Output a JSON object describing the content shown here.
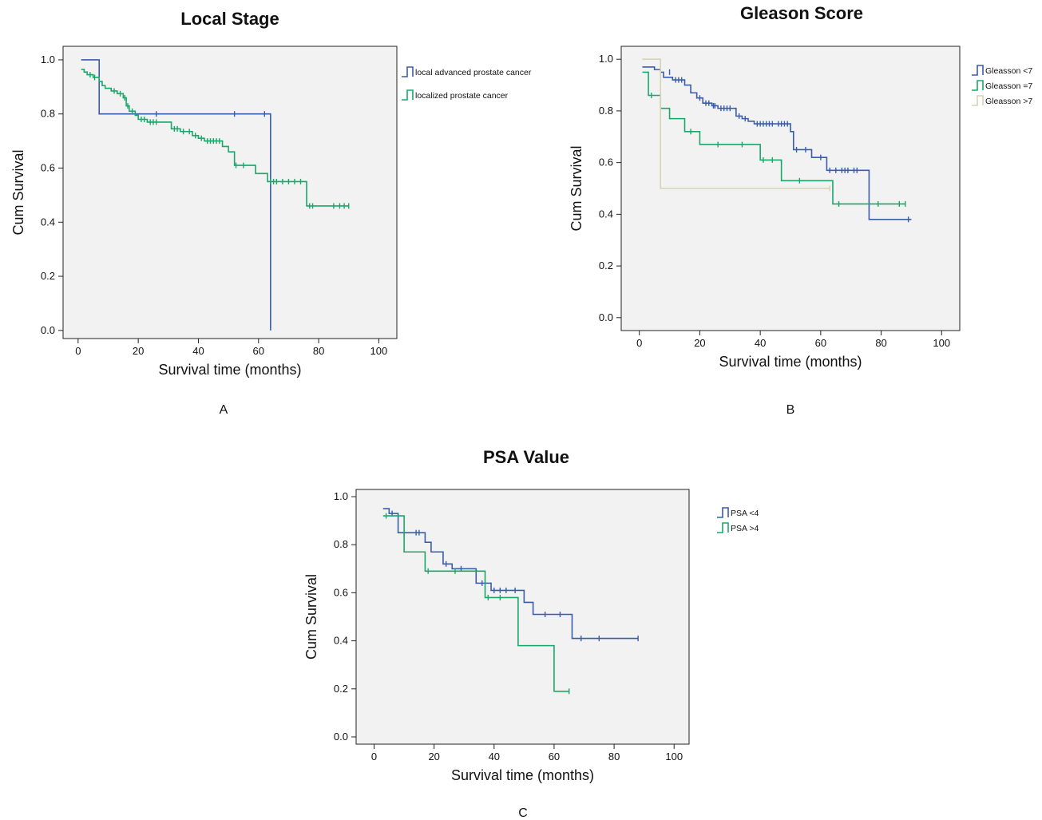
{
  "chart_data": [
    {
      "type": "line",
      "panel": "A",
      "title": "Local Stage",
      "xlabel": "Survival time (months)",
      "ylabel": "Cum Survival",
      "xlim": [
        -5,
        106
      ],
      "ylim": [
        -0.03,
        1.05
      ],
      "xticks": [
        0,
        20,
        40,
        60,
        80,
        100
      ],
      "yticks": [
        0.0,
        0.2,
        0.4,
        0.6,
        0.8,
        1.0
      ],
      "grid": false,
      "legend": "top-right",
      "series": [
        {
          "name": "local advanced prostate cancer",
          "color": "#3a5cad",
          "steps": [
            [
              1,
              1.0
            ],
            [
              7,
              0.8
            ],
            [
              64,
              0.0
            ]
          ],
          "end": 64,
          "censored": [
            [
              26,
              0.8
            ],
            [
              52,
              0.8
            ],
            [
              62,
              0.8
            ]
          ]
        },
        {
          "name": "localized prostate cancer",
          "color": "#1aa86a",
          "steps": [
            [
              1,
              0.965
            ],
            [
              2,
              0.955
            ],
            [
              3,
              0.945
            ],
            [
              5,
              0.935
            ],
            [
              7,
              0.92
            ],
            [
              8,
              0.905
            ],
            [
              9,
              0.895
            ],
            [
              11,
              0.885
            ],
            [
              13,
              0.875
            ],
            [
              15,
              0.86
            ],
            [
              16,
              0.83
            ],
            [
              17,
              0.81
            ],
            [
              19,
              0.795
            ],
            [
              20,
              0.78
            ],
            [
              23,
              0.77
            ],
            [
              31,
              0.745
            ],
            [
              34,
              0.735
            ],
            [
              38,
              0.72
            ],
            [
              40,
              0.71
            ],
            [
              42,
              0.7
            ],
            [
              48,
              0.68
            ],
            [
              50,
              0.66
            ],
            [
              52,
              0.61
            ],
            [
              59,
              0.58
            ],
            [
              63,
              0.55
            ],
            [
              76,
              0.46
            ]
          ],
          "end": 90,
          "censored": [
            [
              4,
              0.945
            ],
            [
              5.5,
              0.935
            ],
            [
              12,
              0.885
            ],
            [
              14,
              0.875
            ],
            [
              15.5,
              0.86
            ],
            [
              16.5,
              0.83
            ],
            [
              18,
              0.81
            ],
            [
              21,
              0.78
            ],
            [
              22,
              0.78
            ],
            [
              24,
              0.77
            ],
            [
              25,
              0.77
            ],
            [
              26,
              0.77
            ],
            [
              32,
              0.745
            ],
            [
              33,
              0.745
            ],
            [
              35,
              0.735
            ],
            [
              37,
              0.735
            ],
            [
              39,
              0.72
            ],
            [
              41,
              0.71
            ],
            [
              43,
              0.7
            ],
            [
              44,
              0.7
            ],
            [
              45,
              0.7
            ],
            [
              46,
              0.7
            ],
            [
              47,
              0.7
            ],
            [
              52.5,
              0.61
            ],
            [
              55,
              0.61
            ],
            [
              64,
              0.55
            ],
            [
              65,
              0.55
            ],
            [
              66,
              0.55
            ],
            [
              68,
              0.55
            ],
            [
              70,
              0.55
            ],
            [
              72,
              0.55
            ],
            [
              74,
              0.55
            ],
            [
              77,
              0.46
            ],
            [
              78,
              0.46
            ],
            [
              85,
              0.46
            ],
            [
              87,
              0.46
            ],
            [
              88.5,
              0.46
            ],
            [
              90,
              0.46
            ]
          ]
        }
      ]
    },
    {
      "type": "line",
      "panel": "B",
      "title": "Gleason Score",
      "xlabel": "Survival time (months)",
      "ylabel": "Cum Survival",
      "xlim": [
        -6,
        106
      ],
      "ylim": [
        -0.05,
        1.05
      ],
      "xticks": [
        0,
        20,
        40,
        60,
        80,
        100
      ],
      "yticks": [
        0.0,
        0.2,
        0.4,
        0.6,
        0.8,
        1.0
      ],
      "grid": false,
      "legend": "top-right",
      "series": [
        {
          "name": "Gleasson <7",
          "color": "#3a5cad",
          "steps": [
            [
              1,
              0.97
            ],
            [
              5,
              0.96
            ],
            [
              7,
              0.95
            ],
            [
              8,
              0.93
            ],
            [
              11,
              0.92
            ],
            [
              15,
              0.9
            ],
            [
              17,
              0.87
            ],
            [
              19,
              0.85
            ],
            [
              21,
              0.83
            ],
            [
              24,
              0.82
            ],
            [
              26,
              0.81
            ],
            [
              32,
              0.78
            ],
            [
              34,
              0.77
            ],
            [
              36,
              0.76
            ],
            [
              38,
              0.75
            ],
            [
              50,
              0.72
            ],
            [
              51,
              0.65
            ],
            [
              57,
              0.62
            ],
            [
              62,
              0.57
            ],
            [
              76,
              0.38
            ]
          ],
          "end": 90,
          "censored": [
            [
              10,
              0.95
            ],
            [
              12,
              0.92
            ],
            [
              13,
              0.92
            ],
            [
              14,
              0.92
            ],
            [
              20,
              0.85
            ],
            [
              22,
              0.83
            ],
            [
              23,
              0.83
            ],
            [
              24.5,
              0.82
            ],
            [
              25,
              0.82
            ],
            [
              27,
              0.81
            ],
            [
              28,
              0.81
            ],
            [
              29,
              0.81
            ],
            [
              30,
              0.81
            ],
            [
              33,
              0.78
            ],
            [
              35,
              0.77
            ],
            [
              39,
              0.75
            ],
            [
              40,
              0.75
            ],
            [
              41,
              0.75
            ],
            [
              42,
              0.75
            ],
            [
              43,
              0.75
            ],
            [
              44,
              0.75
            ],
            [
              46,
              0.75
            ],
            [
              47,
              0.75
            ],
            [
              48,
              0.75
            ],
            [
              49,
              0.75
            ],
            [
              52,
              0.65
            ],
            [
              55,
              0.65
            ],
            [
              60,
              0.62
            ],
            [
              63,
              0.57
            ],
            [
              65,
              0.57
            ],
            [
              67,
              0.57
            ],
            [
              68,
              0.57
            ],
            [
              69,
              0.57
            ],
            [
              71,
              0.57
            ],
            [
              72,
              0.57
            ],
            [
              89,
              0.38
            ]
          ]
        },
        {
          "name": "Gleasson =7",
          "color": "#1aa86a",
          "steps": [
            [
              1,
              0.95
            ],
            [
              3,
              0.86
            ],
            [
              7,
              0.81
            ],
            [
              10,
              0.77
            ],
            [
              15,
              0.72
            ],
            [
              20,
              0.67
            ],
            [
              40,
              0.61
            ],
            [
              47,
              0.53
            ],
            [
              64,
              0.44
            ]
          ],
          "end": 88,
          "censored": [
            [
              4,
              0.86
            ],
            [
              17,
              0.72
            ],
            [
              26,
              0.67
            ],
            [
              34,
              0.67
            ],
            [
              41,
              0.61
            ],
            [
              44,
              0.61
            ],
            [
              53,
              0.53
            ],
            [
              66,
              0.44
            ],
            [
              79,
              0.44
            ],
            [
              86,
              0.44
            ],
            [
              88,
              0.44
            ]
          ]
        },
        {
          "name": "Gleasson >7",
          "color": "#d8d2b8",
          "steps": [
            [
              1,
              1.0
            ],
            [
              7,
              0.5
            ]
          ],
          "end": 63,
          "censored": [
            [
              63,
              0.5
            ]
          ]
        }
      ]
    },
    {
      "type": "line",
      "panel": "C",
      "title": "PSA Value",
      "xlabel": "Survival time (months)",
      "ylabel": "Cum Survival",
      "xlim": [
        -6,
        105
      ],
      "ylim": [
        -0.03,
        1.03
      ],
      "xticks": [
        0,
        20,
        40,
        60,
        80,
        100
      ],
      "yticks": [
        0.0,
        0.2,
        0.4,
        0.6,
        0.8,
        1.0
      ],
      "grid": false,
      "legend": "top-right",
      "series": [
        {
          "name": "PSA <4",
          "color": "#3a5cad",
          "steps": [
            [
              3,
              0.95
            ],
            [
              5,
              0.93
            ],
            [
              8,
              0.85
            ],
            [
              17,
              0.81
            ],
            [
              19,
              0.77
            ],
            [
              23,
              0.72
            ],
            [
              26,
              0.7
            ],
            [
              34,
              0.64
            ],
            [
              39,
              0.61
            ],
            [
              50,
              0.56
            ],
            [
              53,
              0.51
            ],
            [
              66,
              0.41
            ]
          ],
          "end": 88,
          "censored": [
            [
              6,
              0.93
            ],
            [
              14,
              0.85
            ],
            [
              15,
              0.85
            ],
            [
              24,
              0.72
            ],
            [
              29,
              0.7
            ],
            [
              36,
              0.64
            ],
            [
              40,
              0.61
            ],
            [
              42,
              0.61
            ],
            [
              44,
              0.61
            ],
            [
              47,
              0.61
            ],
            [
              57,
              0.51
            ],
            [
              62,
              0.51
            ],
            [
              69,
              0.41
            ],
            [
              75,
              0.41
            ],
            [
              88,
              0.41
            ]
          ]
        },
        {
          "name": "PSA >4",
          "color": "#1aa86a",
          "steps": [
            [
              3,
              0.92
            ],
            [
              10,
              0.77
            ],
            [
              17,
              0.69
            ],
            [
              37,
              0.58
            ],
            [
              48,
              0.38
            ],
            [
              60,
              0.19
            ]
          ],
          "end": 65,
          "censored": [
            [
              4,
              0.92
            ],
            [
              18,
              0.69
            ],
            [
              27,
              0.69
            ],
            [
              38,
              0.58
            ],
            [
              42,
              0.58
            ],
            [
              65,
              0.19
            ]
          ]
        }
      ]
    }
  ]
}
